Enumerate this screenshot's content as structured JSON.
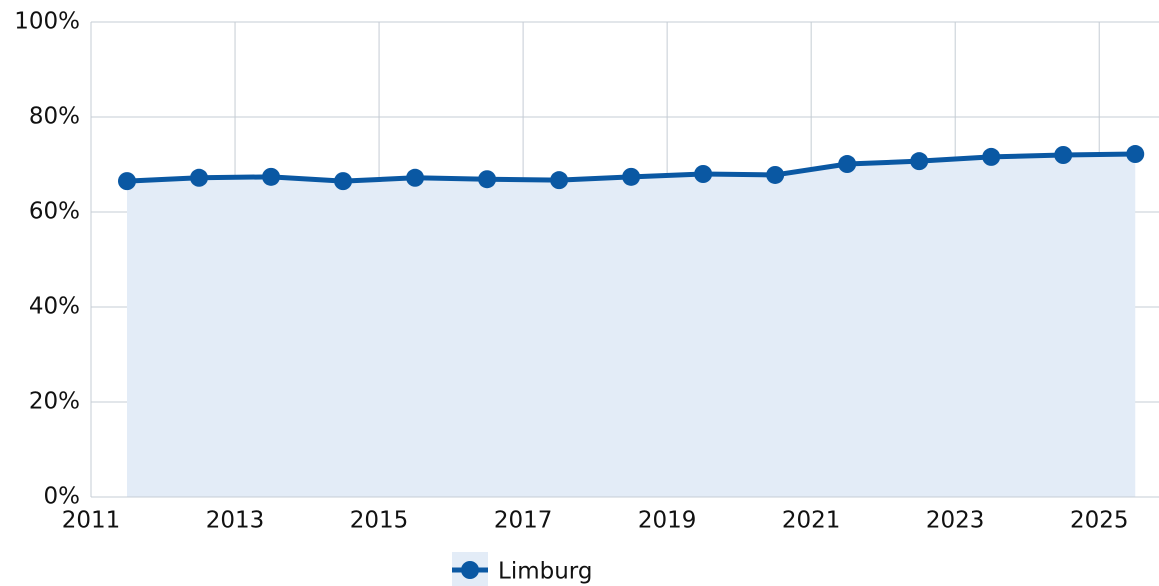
{
  "chart_data": {
    "type": "line",
    "x": [
      2011.5,
      2012.5,
      2013.5,
      2014.5,
      2015.5,
      2016.5,
      2017.5,
      2018.5,
      2019.5,
      2020.5,
      2021.5,
      2022.5,
      2023.5,
      2024.5,
      2025.5
    ],
    "series": [
      {
        "name": "Limburg",
        "color": "#0a58a3",
        "fill": "#e3ecf7",
        "values": [
          66.5,
          67.2,
          67.4,
          66.5,
          67.2,
          66.9,
          66.7,
          67.4,
          68.0,
          67.8,
          70.1,
          70.7,
          71.6,
          72.0,
          72.2
        ]
      }
    ],
    "xlim": [
      2011,
      2025.83
    ],
    "xticks": [
      2011,
      2013,
      2015,
      2017,
      2019,
      2021,
      2023,
      2025
    ],
    "ylim": [
      0,
      100
    ],
    "yticks": [
      {
        "value": 0,
        "label": "0%"
      },
      {
        "value": 20,
        "label": "20%"
      },
      {
        "value": 40,
        "label": "40%"
      },
      {
        "value": 60,
        "label": "60%"
      },
      {
        "value": 80,
        "label": "80%"
      },
      {
        "value": 100,
        "label": "100%"
      }
    ],
    "grid": true,
    "legend": "bottom"
  }
}
